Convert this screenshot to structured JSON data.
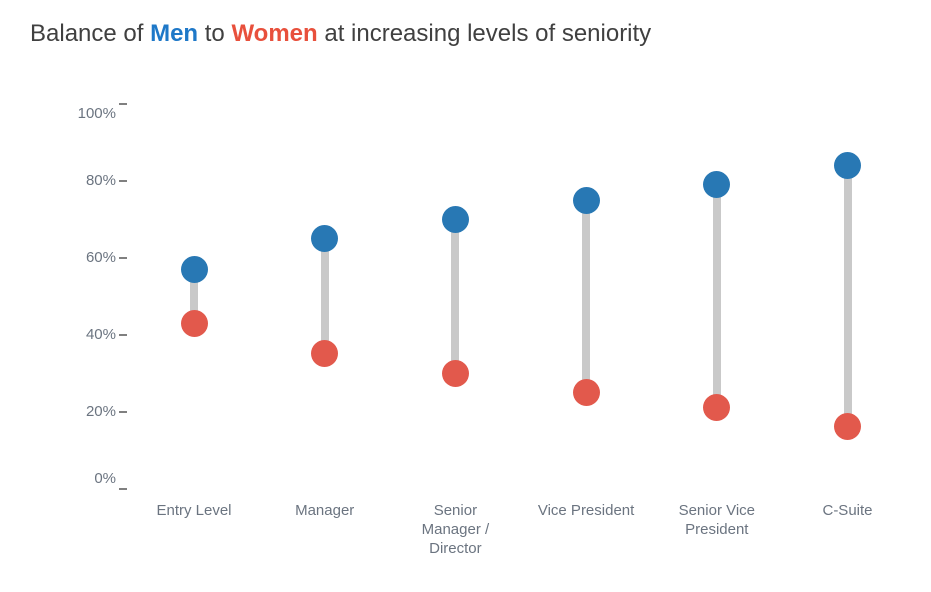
{
  "title": {
    "prefix": "Balance of ",
    "men": "Men",
    "mid": " to ",
    "women": "Women",
    "suffix": " at increasing levels of seniority"
  },
  "colors": {
    "men_dot": "#2878b4",
    "women_dot": "#e2594c",
    "title_men": "#1e78c8",
    "title_women": "#e8503c",
    "title_text": "#404040",
    "axis_label": "#6b7480",
    "tick": "#808080",
    "connector": "#c9c9c9",
    "background": "#ffffff"
  },
  "chart_data": {
    "type": "dumbbell",
    "title": "Balance of Men to Women at increasing levels of seniority",
    "categories": [
      "Entry Level",
      "Manager",
      "Senior Manager / Director",
      "Vice President",
      "Senior Vice President",
      "C-Suite"
    ],
    "category_label_lines": [
      [
        "Entry Level"
      ],
      [
        "Manager"
      ],
      [
        "Senior",
        "Manager /",
        "Director"
      ],
      [
        "Vice President"
      ],
      [
        "Senior Vice",
        "President"
      ],
      [
        "C-Suite"
      ]
    ],
    "series": [
      {
        "name": "Men",
        "color": "#2878b4",
        "values": [
          57,
          65,
          70,
          75,
          79,
          84
        ]
      },
      {
        "name": "Women",
        "color": "#e2594c",
        "values": [
          43,
          35,
          30,
          25,
          21,
          16
        ]
      }
    ],
    "xlabel": "",
    "ylabel": "",
    "ylim": [
      0,
      100
    ],
    "yticks": [
      0,
      20,
      40,
      60,
      80,
      100
    ],
    "ytick_format": "{v}%",
    "grid": false,
    "legend_position": "none (series colors encoded in title words)"
  }
}
